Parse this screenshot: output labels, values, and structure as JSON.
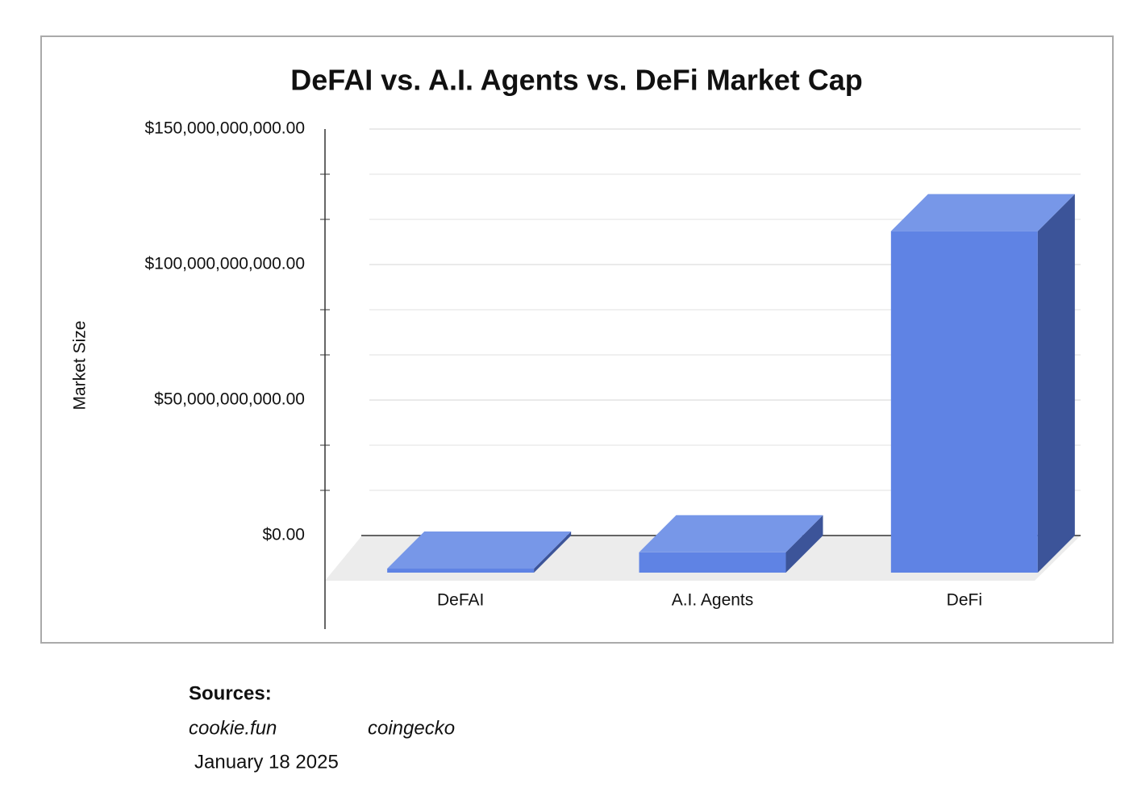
{
  "chart_data": {
    "type": "bar3d",
    "title": "DeFAI vs. A.I. Agents vs. DeFi Market Cap",
    "y_label": "Market Size",
    "categories": [
      "DeFAI",
      "A.I. Agents",
      "DeFi"
    ],
    "values": [
      1500000000,
      7500000000,
      126000000000
    ],
    "color": "#5f83e4",
    "ylim": [
      0,
      150000000000
    ],
    "yticks": [
      {
        "value": 0,
        "label": "$0.00"
      },
      {
        "value": 50000000000,
        "label": "$50,000,000,000.00"
      },
      {
        "value": 100000000000,
        "label": "$100,000,000,000.00"
      },
      {
        "value": 150000000000,
        "label": "$150,000,000,000.00"
      }
    ],
    "grid": true
  },
  "sources": {
    "heading": "Sources:",
    "items": [
      "cookie.fun",
      "coingecko"
    ],
    "date": "January 18 2025"
  }
}
